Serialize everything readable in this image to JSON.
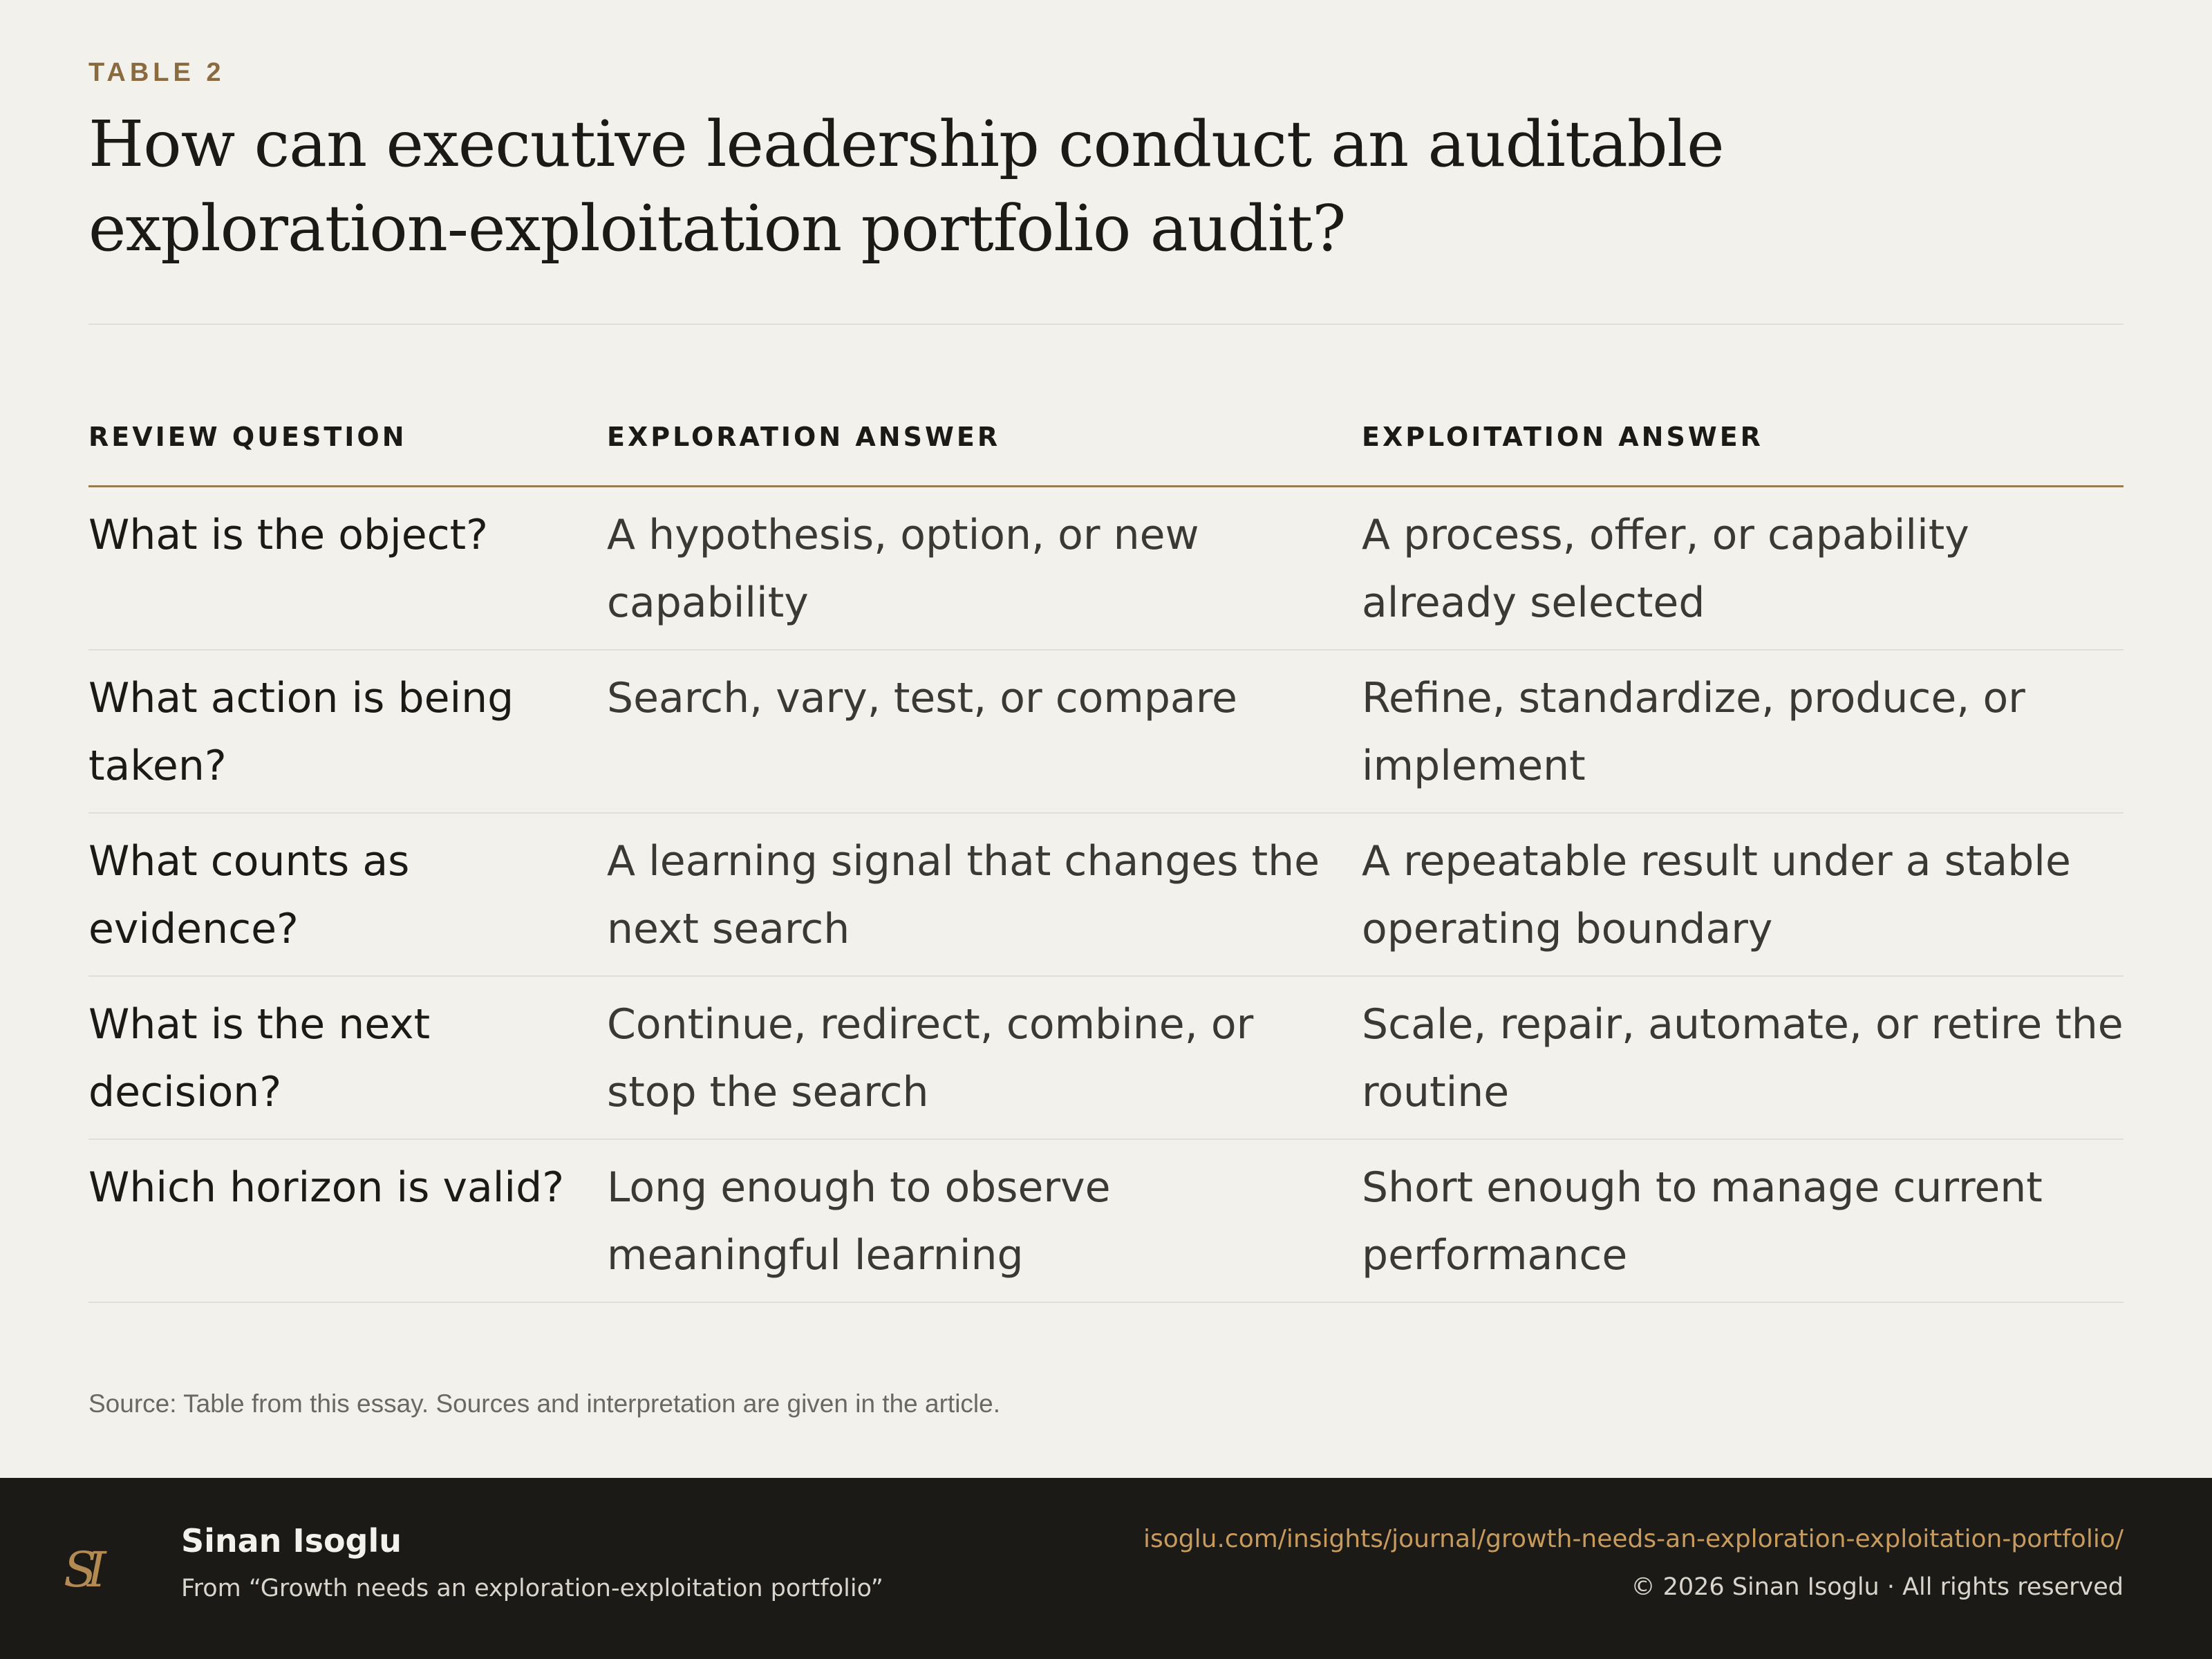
{
  "header": {
    "kicker": "TABLE 2",
    "title": "How can executive leadership conduct an auditable exploration-exploitation portfolio audit?"
  },
  "table": {
    "columns": [
      "REVIEW QUESTION",
      "EXPLORATION ANSWER",
      "EXPLOITATION ANSWER"
    ],
    "rows": [
      [
        "What is the object?",
        "A hypothesis, option, or new capability",
        "A process, offer, or capability already selected"
      ],
      [
        "What action is being taken?",
        "Search, vary, test, or compare",
        "Refine, standardize, produce, or implement"
      ],
      [
        "What counts as evidence?",
        "A learning signal that changes the next search",
        "A repeatable result under a stable operating boundary"
      ],
      [
        "What is the next decision?",
        "Continue, redirect, combine, or stop the search",
        "Scale, repair, automate, or retire the routine"
      ],
      [
        "Which horizon is valid?",
        "Long enough to observe meaningful learning",
        "Short enough to manage current performance"
      ]
    ]
  },
  "source": "Source: Table from this essay. Sources and interpretation are given in the article.",
  "footer": {
    "logo": "SI",
    "author": "Sinan Isoglu",
    "from": "From “Growth needs an exploration-exploitation portfolio”",
    "url": "isoglu.com/insights/journal/growth-needs-an-exploration-exploitation-portfolio/",
    "copyright": "© 2026 Sinan Isoglu · All rights reserved"
  },
  "colors": {
    "background": "#f3f1ec",
    "accent": "#8a6a3f",
    "footer_bg": "#1c1a16",
    "link": "#c89b5d"
  }
}
